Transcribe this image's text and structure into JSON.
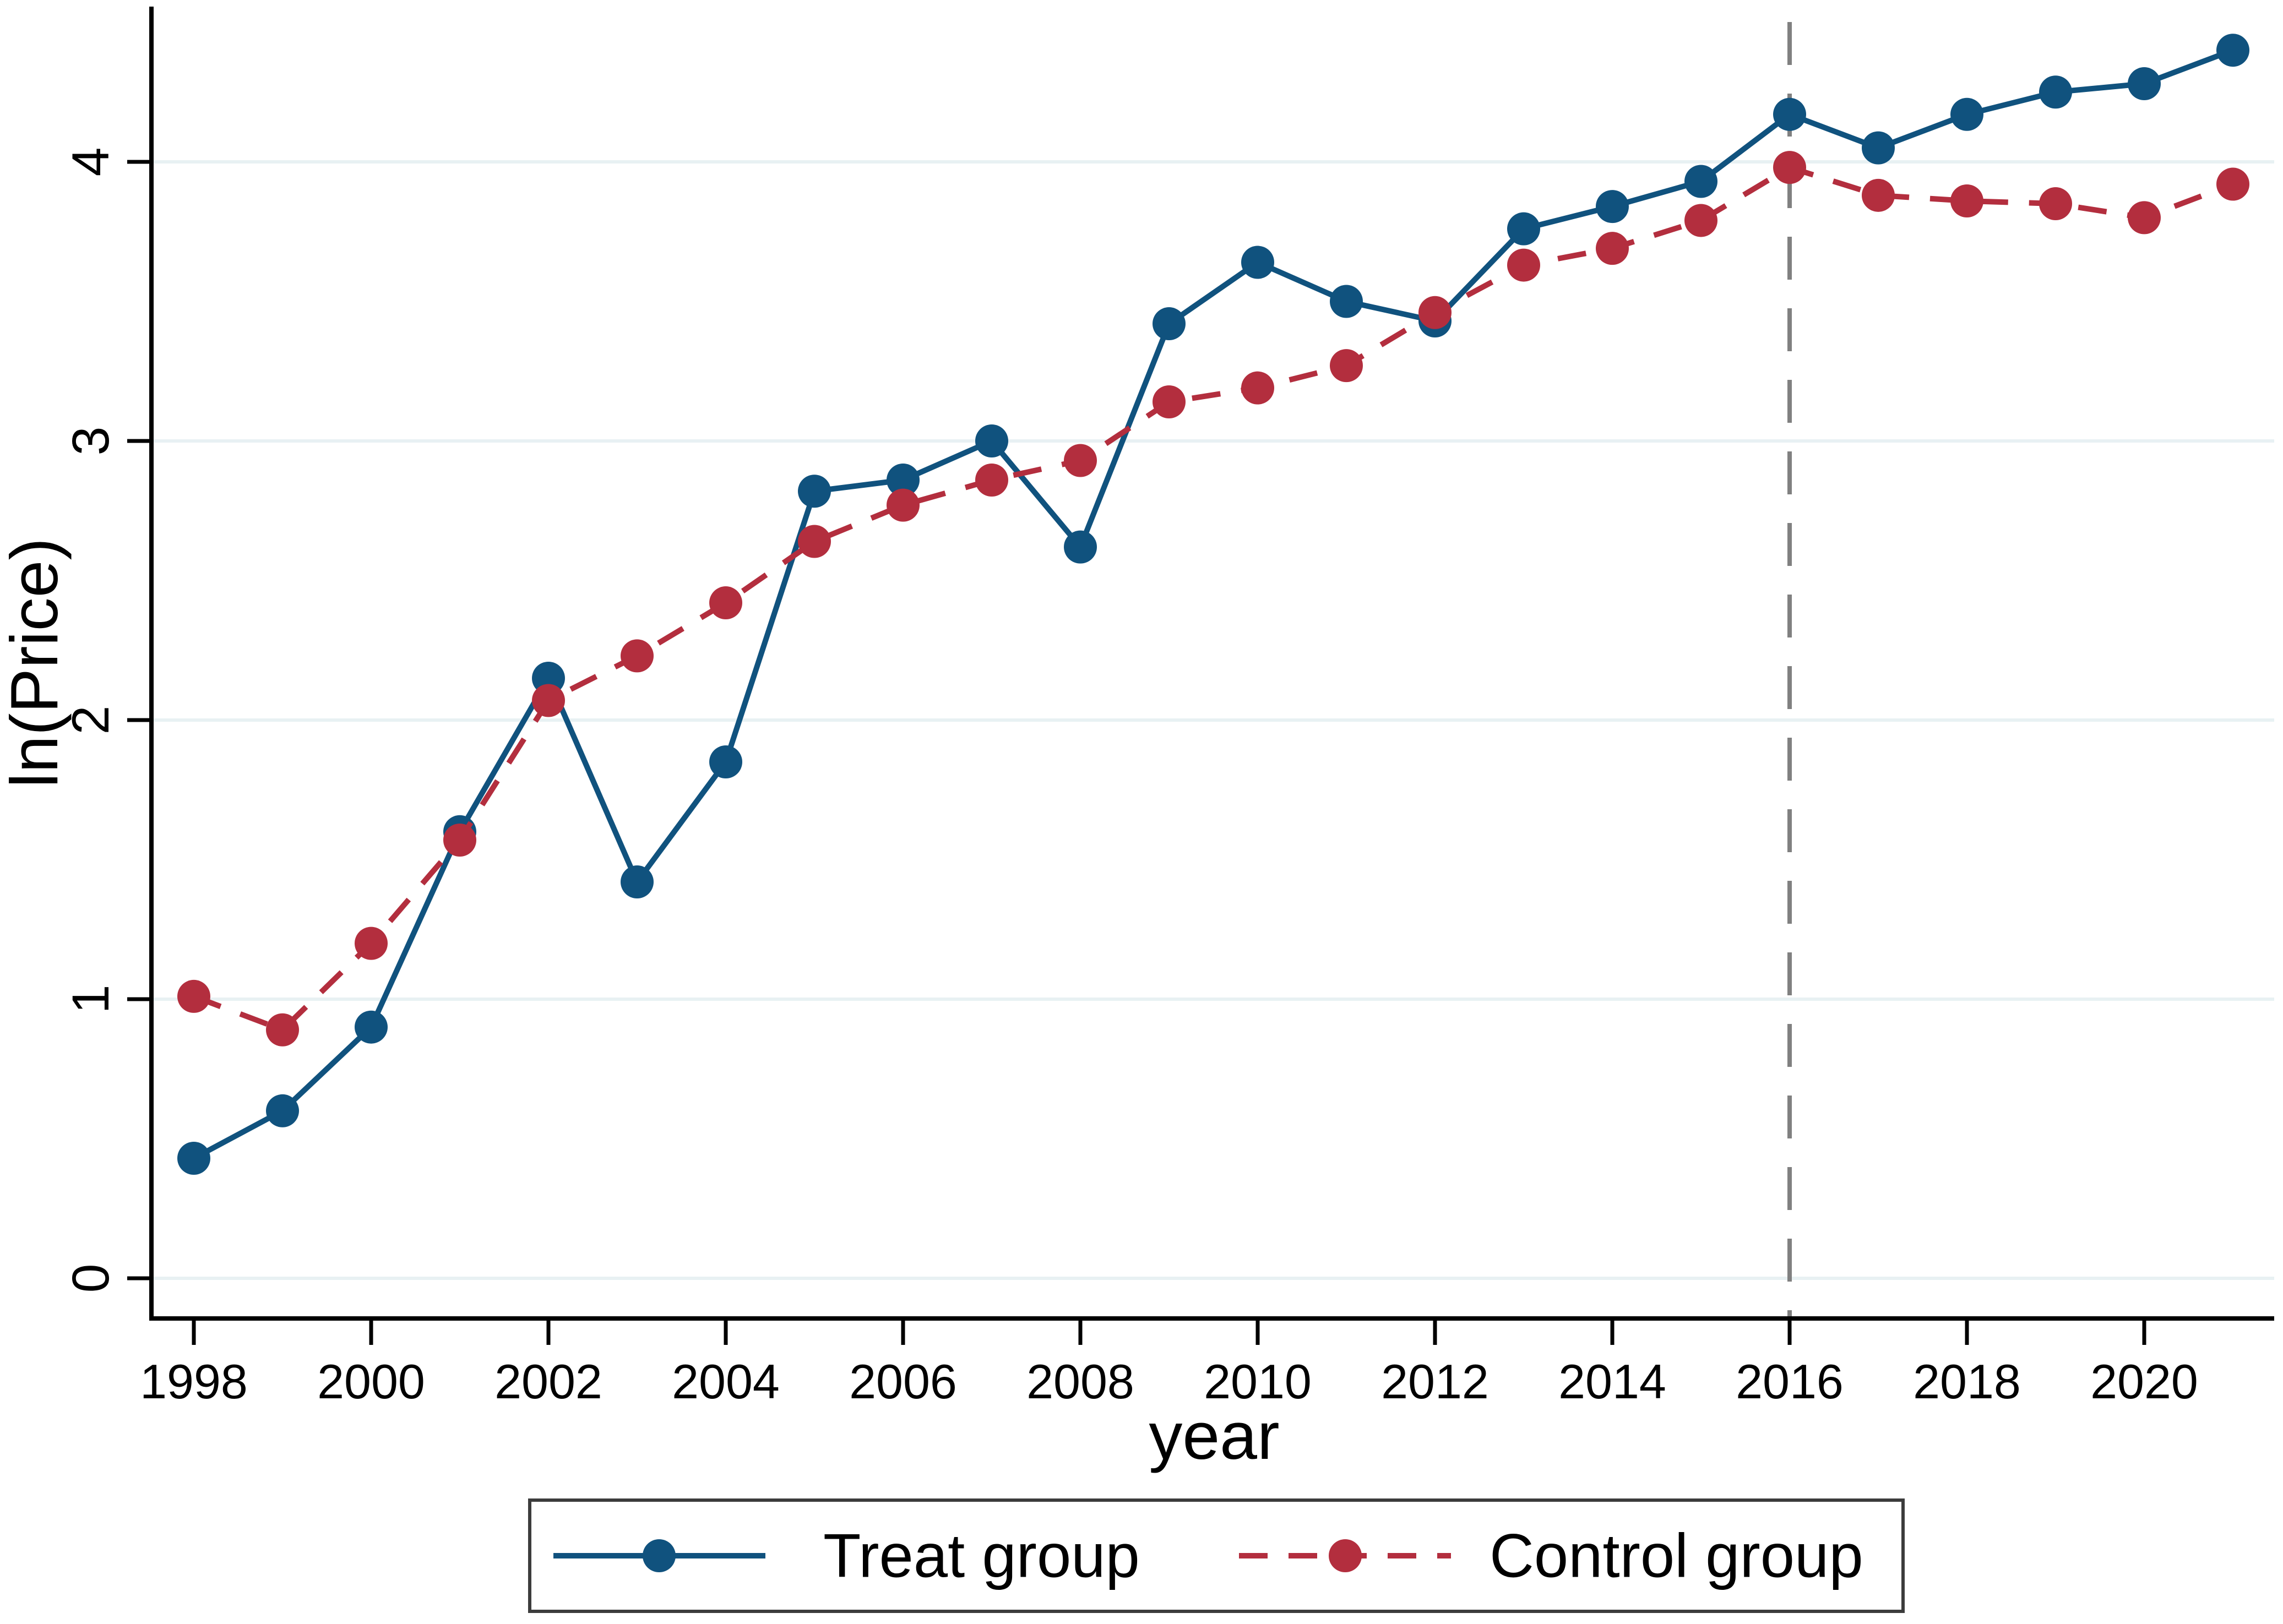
{
  "chart_data": {
    "type": "line",
    "title": "",
    "xlabel": "year",
    "ylabel": "ln(Price)",
    "x": [
      1998,
      1999,
      2000,
      2001,
      2002,
      2003,
      2004,
      2005,
      2006,
      2007,
      2008,
      2009,
      2010,
      2011,
      2012,
      2013,
      2014,
      2015,
      2016,
      2017,
      2018,
      2019,
      2020,
      2021
    ],
    "series": [
      {
        "name": "Treat group",
        "color": "#10527e",
        "line_style": "solid",
        "marker": "circle",
        "values": [
          0.43,
          0.6,
          0.9,
          1.6,
          2.15,
          1.42,
          1.85,
          2.82,
          2.86,
          3.0,
          2.62,
          3.42,
          3.64,
          3.5,
          3.43,
          3.76,
          3.84,
          3.93,
          4.17,
          4.05,
          4.17,
          4.25,
          4.28,
          4.4
        ]
      },
      {
        "name": "Control group",
        "color": "#b32e3e",
        "line_style": "dashed",
        "marker": "circle",
        "values": [
          1.01,
          0.89,
          1.2,
          1.57,
          2.07,
          2.23,
          2.42,
          2.64,
          2.77,
          2.86,
          2.93,
          3.14,
          3.19,
          3.27,
          3.46,
          3.63,
          3.69,
          3.79,
          3.98,
          3.88,
          3.86,
          3.85,
          3.8,
          3.92
        ]
      }
    ],
    "yticks": [
      0,
      1,
      2,
      3,
      4
    ],
    "ytick_labels": [
      "0",
      "1",
      "2",
      "3",
      "4"
    ],
    "xticks": [
      1998,
      2000,
      2002,
      2004,
      2006,
      2008,
      2010,
      2012,
      2014,
      2016,
      2018,
      2020
    ],
    "xtick_labels": [
      "1998",
      "2000",
      "2002",
      "2004",
      "2006",
      "2008",
      "2010",
      "2012",
      "2014",
      "2016",
      "2018",
      "2020"
    ],
    "ylim": [
      -0.15,
      4.55
    ],
    "xlim": [
      1997.5,
      2021.5
    ],
    "grid": "horizontal",
    "grid_color": "#e8f1f3",
    "reference_line": {
      "axis": "x",
      "value": 2016,
      "style": "dashed",
      "color": "#808080"
    },
    "legend": {
      "position": "bottom",
      "boxed": true,
      "border_color": "#3c3c3c",
      "entries": [
        {
          "label": "Treat group",
          "color": "#10527e",
          "line_style": "solid",
          "marker": "circle"
        },
        {
          "label": "Control group",
          "color": "#b32e3e",
          "line_style": "dashed",
          "marker": "circle"
        }
      ]
    }
  },
  "colors": {
    "treat": "#10527e",
    "control": "#b32e3e",
    "grid": "#e8f1f3",
    "axis": "#000000",
    "reference": "#808080",
    "legend_border": "#3c3c3c",
    "background": "#ffffff"
  }
}
